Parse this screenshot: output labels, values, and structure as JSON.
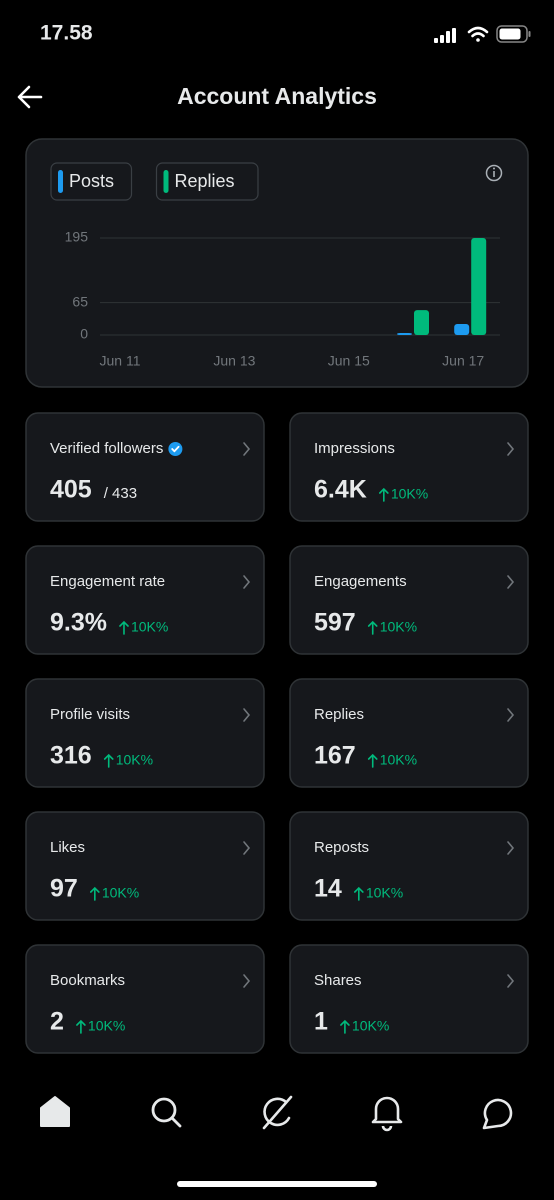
{
  "status_bar": {
    "time": "17.58"
  },
  "header": {
    "title": "Account Analytics"
  },
  "chart_data": {
    "type": "bar",
    "categories": [
      "Jun 11",
      null,
      "Jun 13",
      null,
      "Jun 15",
      null,
      "Jun 17"
    ],
    "series": [
      {
        "name": "Posts",
        "color": "#1d9bf0",
        "values": [
          0,
          0,
          0,
          0,
          0,
          4,
          22
        ]
      },
      {
        "name": "Replies",
        "color": "#00ba7c",
        "values": [
          0,
          0,
          0,
          0,
          0,
          50,
          195
        ]
      }
    ],
    "ylim": [
      0,
      195
    ],
    "yticks": [
      0,
      65,
      195
    ],
    "grid": true
  },
  "metrics": [
    {
      "label": "Verified followers",
      "value": "405",
      "total": "/ 433"
    },
    {
      "label": "Impressions",
      "value": "6.4K",
      "change": "10K%"
    },
    {
      "label": "Engagement rate",
      "value": "9.3%",
      "change": "10K%"
    },
    {
      "label": "Engagements",
      "value": "597",
      "change": "10K%"
    },
    {
      "label": "Profile visits",
      "value": "316",
      "change": "10K%"
    },
    {
      "label": "Replies",
      "value": "167",
      "change": "10K%"
    },
    {
      "label": "Likes",
      "value": "97",
      "change": "10K%"
    },
    {
      "label": "Reposts",
      "value": "14",
      "change": "10K%"
    },
    {
      "label": "Bookmarks",
      "value": "2",
      "change": "10K%"
    },
    {
      "label": "Shares",
      "value": "1",
      "change": "10K%"
    }
  ]
}
